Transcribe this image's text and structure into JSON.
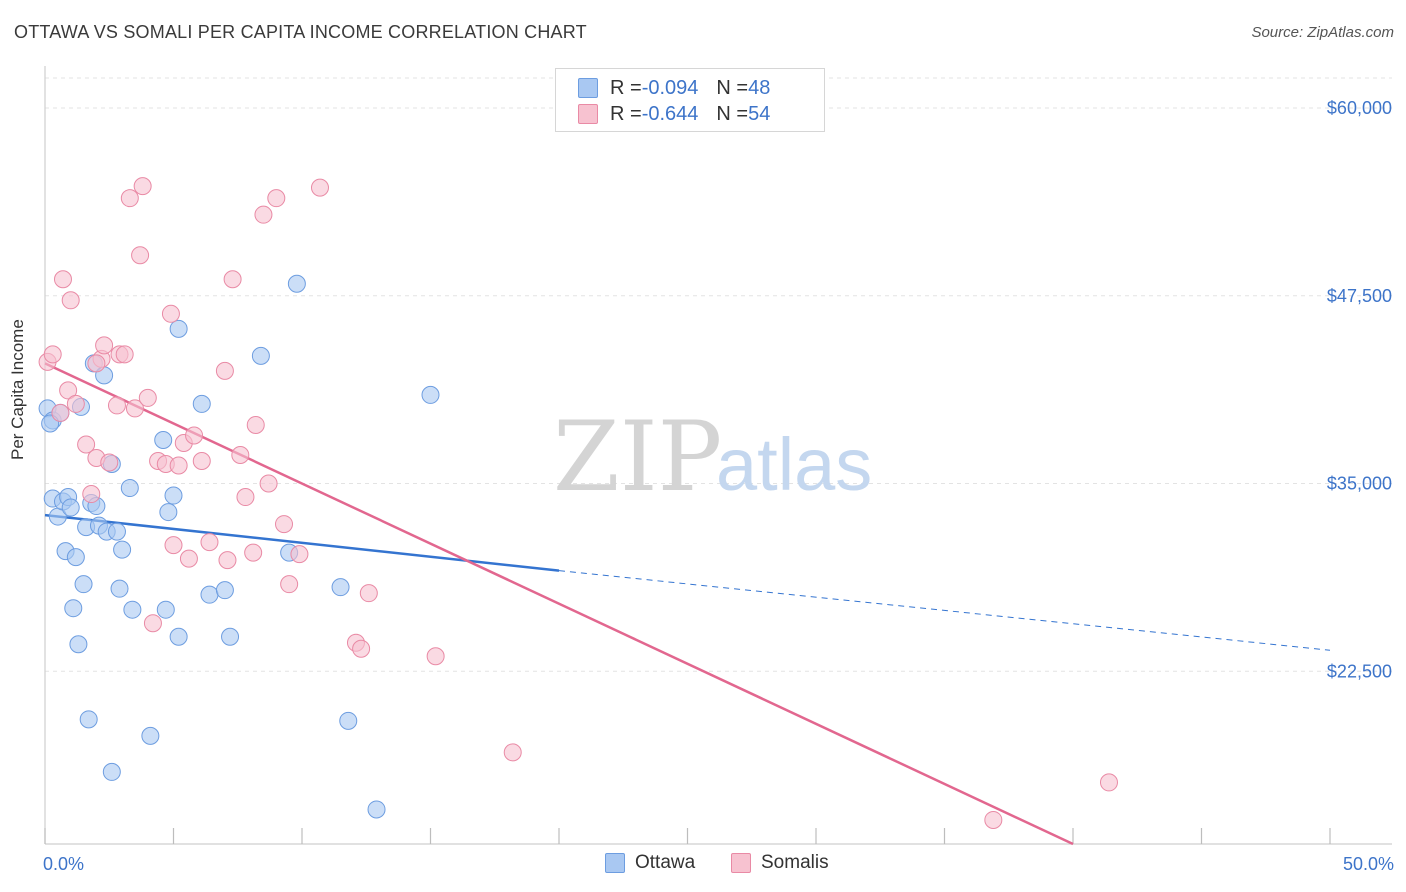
{
  "title": "OTTAWA VS SOMALI PER CAPITA INCOME CORRELATION CHART",
  "source": "Source: ZipAtlas.com",
  "watermark": {
    "zip": "ZIP",
    "atlas": "atlas"
  },
  "legend": {
    "rows": [
      {
        "r_label": "R = ",
        "r_value": "-0.094",
        "n_label": "N = ",
        "n_value": "48",
        "color": "#a9c8f2",
        "border": "#6d9de0"
      },
      {
        "r_label": "R = ",
        "r_value": "-0.644",
        "n_label": "N = ",
        "n_value": "54",
        "color": "#f7c2d0",
        "border": "#e98aa5"
      }
    ]
  },
  "bottom_legend": [
    "Ottawa",
    "Somalis"
  ],
  "chart_data": {
    "type": "scatter",
    "title": "OTTAWA VS SOMALI PER CAPITA INCOME CORRELATION CHART",
    "xlabel": "",
    "ylabel": "Per Capita Income",
    "xlim": [
      0,
      50
    ],
    "ylim": [
      11000,
      62000
    ],
    "x_tick_labels": [
      "0.0%",
      "50.0%"
    ],
    "y_ticks": [
      22500,
      35000,
      47500,
      60000
    ],
    "y_tick_labels": [
      "$22,500",
      "$35,000",
      "$47,500",
      "$60,000"
    ],
    "grid": true,
    "series": [
      {
        "name": "Ottawa",
        "color": "#a9c8f2",
        "edge": "#6d9de0",
        "points": [
          [
            0.1,
            40000
          ],
          [
            0.3,
            39200
          ],
          [
            0.3,
            34000
          ],
          [
            0.5,
            32800
          ],
          [
            0.6,
            39700
          ],
          [
            0.7,
            33800
          ],
          [
            0.8,
            30500
          ],
          [
            0.9,
            34100
          ],
          [
            1.0,
            33400
          ],
          [
            1.1,
            26700
          ],
          [
            1.2,
            30100
          ],
          [
            1.3,
            24300
          ],
          [
            1.4,
            40100
          ],
          [
            1.5,
            28300
          ],
          [
            1.6,
            32100
          ],
          [
            1.7,
            19300
          ],
          [
            1.8,
            33700
          ],
          [
            1.9,
            43000
          ],
          [
            2.0,
            33500
          ],
          [
            2.1,
            32200
          ],
          [
            2.3,
            42200
          ],
          [
            2.4,
            31800
          ],
          [
            2.6,
            36300
          ],
          [
            2.8,
            31800
          ],
          [
            2.9,
            28000
          ],
          [
            3.0,
            30600
          ],
          [
            3.3,
            34700
          ],
          [
            3.4,
            26600
          ],
          [
            2.6,
            15800
          ],
          [
            4.1,
            18200
          ],
          [
            4.6,
            37900
          ],
          [
            4.7,
            26600
          ],
          [
            4.8,
            33100
          ],
          [
            5.0,
            34200
          ],
          [
            5.2,
            45300
          ],
          [
            5.2,
            24800
          ],
          [
            6.1,
            40300
          ],
          [
            6.4,
            27600
          ],
          [
            7.0,
            27900
          ],
          [
            7.2,
            24800
          ],
          [
            8.4,
            43500
          ],
          [
            9.5,
            30400
          ],
          [
            9.8,
            48300
          ],
          [
            11.5,
            28100
          ],
          [
            11.8,
            19200
          ],
          [
            12.9,
            13300
          ],
          [
            15.0,
            40900
          ],
          [
            0.2,
            39000
          ]
        ],
        "trend": {
          "x0": 0,
          "y0": 32900,
          "x1": 20,
          "y1": 29200,
          "dash_x1": 50,
          "dash_y1": 23900
        }
      },
      {
        "name": "Somalis",
        "color": "#f7c2d0",
        "edge": "#e98aa5",
        "points": [
          [
            0.1,
            43100
          ],
          [
            0.3,
            43600
          ],
          [
            0.6,
            39700
          ],
          [
            0.7,
            48600
          ],
          [
            0.9,
            41200
          ],
          [
            1.0,
            47200
          ],
          [
            1.2,
            40300
          ],
          [
            1.6,
            37600
          ],
          [
            1.8,
            34300
          ],
          [
            2.0,
            36700
          ],
          [
            2.2,
            43300
          ],
          [
            2.3,
            44200
          ],
          [
            2.5,
            36400
          ],
          [
            2.8,
            40200
          ],
          [
            2.9,
            43600
          ],
          [
            3.1,
            43600
          ],
          [
            3.3,
            54000
          ],
          [
            3.5,
            40000
          ],
          [
            3.7,
            50200
          ],
          [
            3.8,
            54800
          ],
          [
            4.0,
            40700
          ],
          [
            4.2,
            25700
          ],
          [
            4.4,
            36500
          ],
          [
            4.7,
            36300
          ],
          [
            4.9,
            46300
          ],
          [
            5.0,
            30900
          ],
          [
            5.2,
            36200
          ],
          [
            5.4,
            37700
          ],
          [
            5.6,
            30000
          ],
          [
            5.8,
            38200
          ],
          [
            6.1,
            36500
          ],
          [
            6.4,
            31100
          ],
          [
            7.0,
            42500
          ],
          [
            7.1,
            29900
          ],
          [
            7.3,
            48600
          ],
          [
            7.6,
            36900
          ],
          [
            7.8,
            34100
          ],
          [
            8.1,
            30400
          ],
          [
            8.2,
            38900
          ],
          [
            8.5,
            52900
          ],
          [
            8.7,
            35000
          ],
          [
            9.0,
            54000
          ],
          [
            9.3,
            32300
          ],
          [
            9.5,
            28300
          ],
          [
            9.9,
            30300
          ],
          [
            10.7,
            54700
          ],
          [
            12.1,
            24400
          ],
          [
            12.3,
            24000
          ],
          [
            12.6,
            27700
          ],
          [
            15.2,
            23500
          ],
          [
            18.2,
            17100
          ],
          [
            36.9,
            12600
          ],
          [
            41.4,
            15100
          ],
          [
            2.0,
            43000
          ]
        ],
        "trend": {
          "x0": 0,
          "y0": 43000,
          "x1": 40,
          "y1": 11000
        }
      }
    ]
  }
}
